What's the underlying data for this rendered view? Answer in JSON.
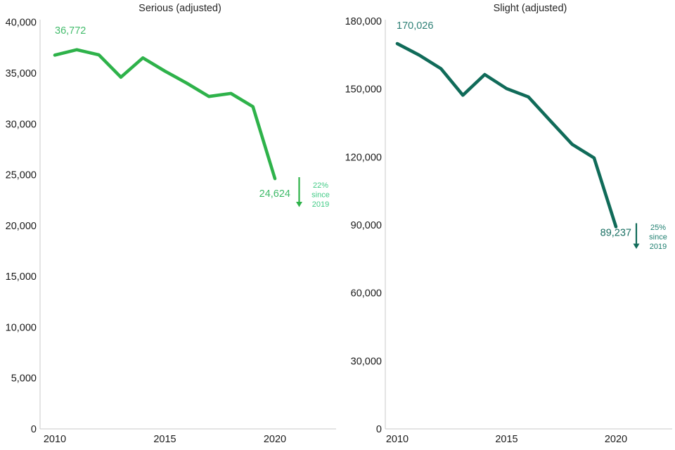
{
  "page": {
    "background": "#ffffff",
    "axis_color": "#c9c9c9",
    "tick_text_color": "#1a1a1a",
    "title_color": "#262626"
  },
  "chart_data": [
    {
      "type": "line",
      "title": "Serious (adjusted)",
      "x": [
        2010,
        2011,
        2012,
        2013,
        2014,
        2015,
        2016,
        2017,
        2018,
        2019,
        2020
      ],
      "values": [
        36772,
        37300,
        36800,
        34600,
        36500,
        35200,
        34000,
        32700,
        33000,
        31700,
        24624
      ],
      "ylim": [
        0,
        40000
      ],
      "xlabel": "",
      "ylabel": "",
      "grid": false,
      "legend": null,
      "y_tick_values": [
        0,
        5000,
        10000,
        15000,
        20000,
        25000,
        30000,
        35000,
        40000
      ],
      "y_tick_labels": [
        "0",
        "5,000",
        "10,000",
        "15,000",
        "20,000",
        "25,000",
        "30,000",
        "35,000",
        "40,000"
      ],
      "x_tick_values": [
        2010,
        2015,
        2020
      ],
      "x_tick_labels": [
        "2010",
        "2015",
        "2020"
      ],
      "line_color": "#2eb24a",
      "start_point_label": "36,772",
      "start_label_color": "#43bc6c",
      "end_point_label": "24,624",
      "end_label_color": "#3eba68",
      "annotation": {
        "lines": [
          "22%",
          "since",
          "2019"
        ],
        "color": "#42cb86",
        "arrow": "down",
        "arrow_color": "#2eb24a"
      }
    },
    {
      "type": "line",
      "title": "Slight (adjusted)",
      "x": [
        2010,
        2011,
        2012,
        2013,
        2014,
        2015,
        2016,
        2017,
        2018,
        2019,
        2020
      ],
      "values": [
        170026,
        165000,
        159000,
        147300,
        156400,
        150200,
        146500,
        136000,
        125600,
        119600,
        89237
      ],
      "ylim": [
        0,
        180000
      ],
      "xlabel": "",
      "ylabel": "",
      "grid": false,
      "legend": null,
      "y_tick_values": [
        0,
        30000,
        60000,
        90000,
        120000,
        150000,
        180000
      ],
      "y_tick_labels": [
        "0",
        "30,000",
        "60,000",
        "90,000",
        "120,000",
        "150,000",
        "180,000"
      ],
      "x_tick_values": [
        2010,
        2015,
        2020
      ],
      "x_tick_labels": [
        "2010",
        "2015",
        "2020"
      ],
      "line_color": "#106b59",
      "start_point_label": "170,026",
      "start_label_color": "#2e8076",
      "end_point_label": "89,237",
      "end_label_color": "#186f62",
      "annotation": {
        "lines": [
          "25%",
          "since",
          "2019"
        ],
        "color": "#1f7f70",
        "arrow": "down",
        "arrow_color": "#106b59"
      }
    }
  ]
}
